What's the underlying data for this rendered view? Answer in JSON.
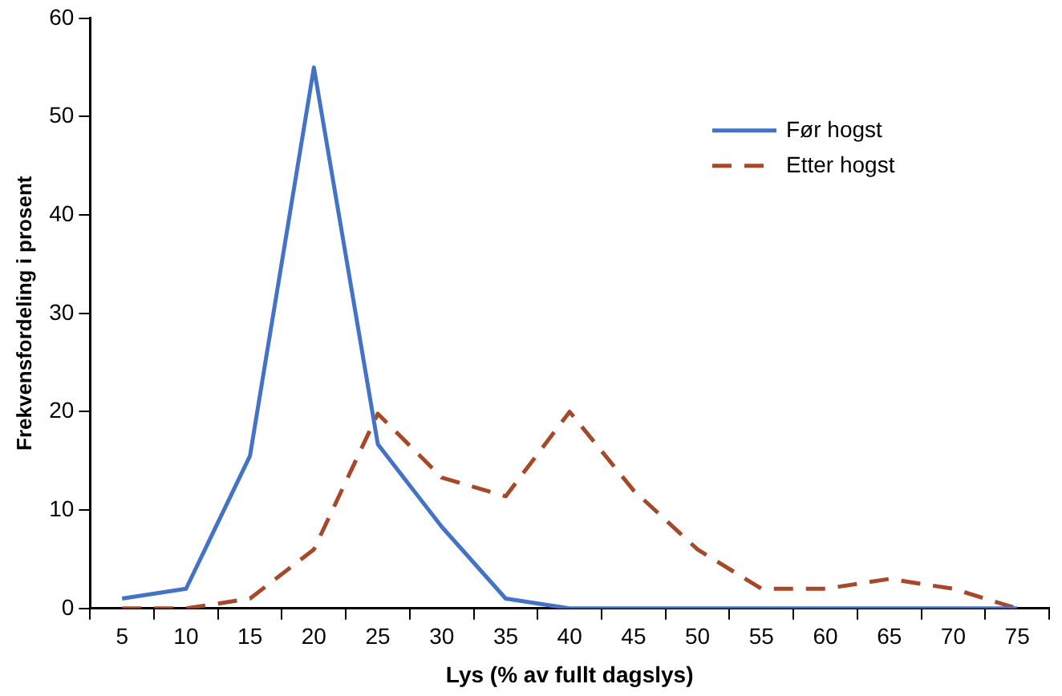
{
  "chart_data": {
    "type": "line",
    "xlabel": "Lys (% av fullt dagslys)",
    "ylabel": "Frekvensfordeling i prosent",
    "categories": [
      "5",
      "10",
      "15",
      "20",
      "25",
      "30",
      "35",
      "40",
      "45",
      "50",
      "55",
      "60",
      "65",
      "70",
      "75"
    ],
    "series": [
      {
        "name": "Før hogst",
        "color": "#4472c4",
        "line_style": "solid",
        "values": [
          1,
          2,
          15.5,
          55,
          16.7,
          8.3,
          1,
          0,
          0,
          0,
          0,
          0,
          0,
          0,
          0
        ]
      },
      {
        "name": "Etter hogst",
        "color": "#a5492a",
        "line_style": "dashed",
        "values": [
          0,
          0,
          1,
          6,
          19.8,
          13.3,
          11.4,
          20,
          12,
          6,
          2,
          2,
          3,
          2,
          0
        ]
      }
    ],
    "ylim": [
      0,
      60
    ],
    "yticks": [
      0,
      10,
      20,
      30,
      40,
      50,
      60
    ],
    "grid": false,
    "legend": "top right",
    "marker": "none"
  }
}
